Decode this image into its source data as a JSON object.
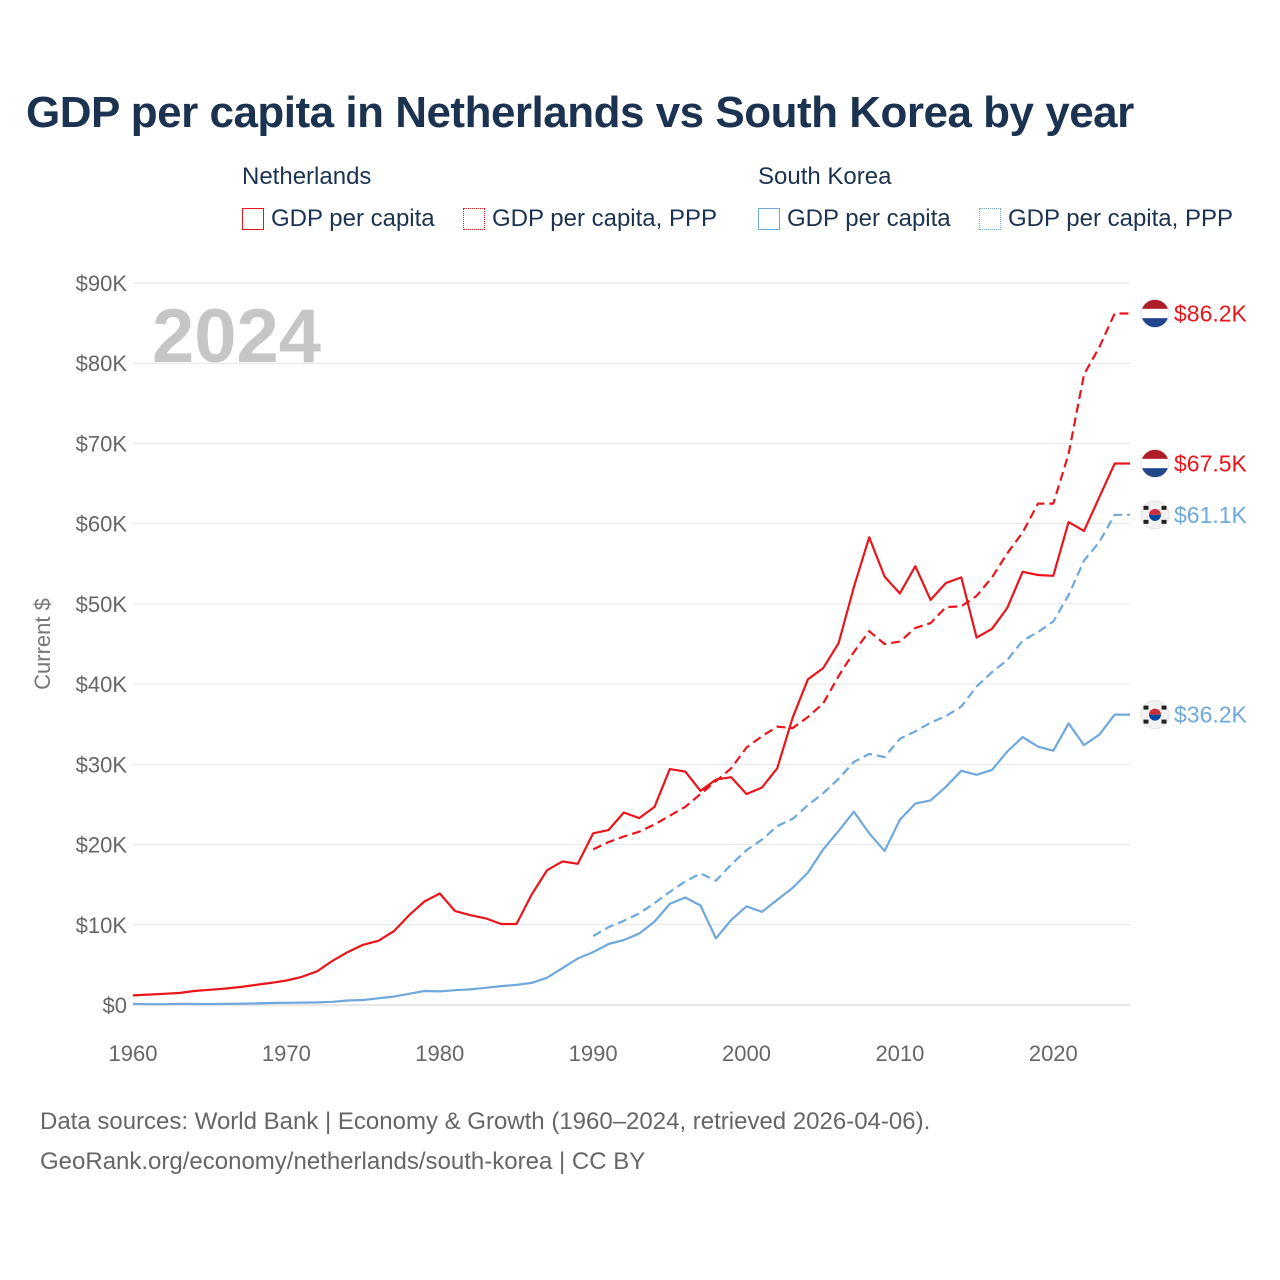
{
  "title": "GDP per capita in Netherlands vs South Korea by year",
  "legend": {
    "groups": [
      {
        "name": "Netherlands",
        "color": "#e8151b",
        "items": [
          {
            "label": "GDP per capita",
            "style": "solid"
          },
          {
            "label": "GDP per capita, PPP",
            "style": "dotted"
          }
        ]
      },
      {
        "name": "South Korea",
        "color": "#6fa8dc",
        "items": [
          {
            "label": "GDP per capita",
            "style": "solid"
          },
          {
            "label": "GDP per capita, PPP",
            "style": "dotted"
          }
        ]
      }
    ]
  },
  "sources": {
    "line1": "Data sources: World Bank | Economy & Growth (1960–2024, retrieved 2026-04-06).",
    "line2": "GeoRank.org/economy/netherlands/south-korea | CC BY"
  },
  "chart_data": {
    "type": "line",
    "title": "GDP per capita in Netherlands vs South Korea by year",
    "xlabel": "",
    "ylabel": "Current $",
    "xlim": [
      1960,
      2025
    ],
    "ylim": [
      0,
      90000
    ],
    "xticks": [
      1960,
      1970,
      1980,
      1990,
      2000,
      2010,
      2020
    ],
    "yticks": [
      0,
      10000,
      20000,
      30000,
      40000,
      50000,
      60000,
      70000,
      80000,
      90000
    ],
    "ytick_labels": [
      "$0",
      "$10K",
      "$20K",
      "$30K",
      "$40K",
      "$50K",
      "$60K",
      "$70K",
      "$80K",
      "$90K"
    ],
    "grid": true,
    "year_label": "2024",
    "series": [
      {
        "name": "Netherlands GDP per capita",
        "country": "Netherlands",
        "color": "#e8151b",
        "dash": "solid",
        "end_label": "$67.5K",
        "x": [
          1960,
          1961,
          1962,
          1963,
          1964,
          1965,
          1966,
          1967,
          1968,
          1969,
          1970,
          1971,
          1972,
          1973,
          1974,
          1975,
          1976,
          1977,
          1978,
          1979,
          1980,
          1981,
          1982,
          1983,
          1984,
          1985,
          1986,
          1987,
          1988,
          1989,
          1990,
          1991,
          1992,
          1993,
          1994,
          1995,
          1996,
          1997,
          1998,
          1999,
          2000,
          2001,
          2002,
          2003,
          2004,
          2005,
          2006,
          2007,
          2008,
          2009,
          2010,
          2011,
          2012,
          2013,
          2014,
          2015,
          2016,
          2017,
          2018,
          2019,
          2020,
          2021,
          2022,
          2023,
          2024,
          2025
        ],
        "y": [
          1200,
          1300,
          1400,
          1500,
          1750,
          1900,
          2050,
          2250,
          2500,
          2750,
          3050,
          3500,
          4200,
          5500,
          6600,
          7500,
          8000,
          9200,
          11200,
          12900,
          13900,
          11700,
          11200,
          10800,
          10100,
          10100,
          13800,
          16800,
          17900,
          17600,
          21400,
          21800,
          24000,
          23300,
          24700,
          29400,
          29100,
          26700,
          28100,
          28400,
          26300,
          27100,
          29500,
          35800,
          40600,
          42000,
          45100,
          52100,
          58300,
          53400,
          51300,
          54700,
          50500,
          52600,
          53300,
          45800,
          46900,
          49500,
          54000,
          53600,
          53500,
          60200,
          59100,
          63300,
          67500,
          67500
        ]
      },
      {
        "name": "Netherlands GDP per capita, PPP",
        "country": "Netherlands",
        "color": "#e8151b",
        "dash": "dashed",
        "end_label": "$86.2K",
        "x": [
          1990,
          1991,
          1992,
          1993,
          1994,
          1995,
          1996,
          1997,
          1998,
          1999,
          2000,
          2001,
          2002,
          2003,
          2004,
          2005,
          2006,
          2007,
          2008,
          2009,
          2010,
          2011,
          2012,
          2013,
          2014,
          2015,
          2016,
          2017,
          2018,
          2019,
          2020,
          2021,
          2022,
          2023,
          2024,
          2025
        ],
        "y": [
          19400,
          20300,
          21000,
          21600,
          22500,
          23600,
          24700,
          26300,
          27900,
          29500,
          32100,
          33500,
          34700,
          34500,
          35900,
          37600,
          41000,
          44000,
          46600,
          45000,
          45300,
          47000,
          47600,
          49600,
          49700,
          51000,
          53300,
          56300,
          58900,
          62500,
          62500,
          68700,
          78600,
          82000,
          86200,
          86200
        ]
      },
      {
        "name": "South Korea GDP per capita",
        "country": "South Korea",
        "color": "#6fa8dc",
        "dash": "solid",
        "end_label": "$36.2K",
        "x": [
          1960,
          1961,
          1962,
          1963,
          1964,
          1965,
          1966,
          1967,
          1968,
          1969,
          1970,
          1971,
          1972,
          1973,
          1974,
          1975,
          1976,
          1977,
          1978,
          1979,
          1980,
          1981,
          1982,
          1983,
          1984,
          1985,
          1986,
          1987,
          1988,
          1989,
          1990,
          1991,
          1992,
          1993,
          1994,
          1995,
          1996,
          1997,
          1998,
          1999,
          2000,
          2001,
          2002,
          2003,
          2004,
          2005,
          2006,
          2007,
          2008,
          2009,
          2010,
          2011,
          2012,
          2013,
          2014,
          2015,
          2016,
          2017,
          2018,
          2019,
          2020,
          2021,
          2022,
          2023,
          2024,
          2025
        ],
        "y": [
          160,
          95,
          105,
          145,
          125,
          110,
          135,
          160,
          200,
          245,
          280,
          300,
          330,
          400,
          560,
          620,
          830,
          1050,
          1400,
          1750,
          1700,
          1850,
          1950,
          2150,
          2350,
          2500,
          2750,
          3400,
          4600,
          5800,
          6600,
          7600,
          8100,
          8900,
          10400,
          12600,
          13400,
          12400,
          8300,
          10600,
          12300,
          11600,
          13100,
          14600,
          16500,
          19400,
          21700,
          24100,
          21400,
          19200,
          23100,
          25100,
          25500,
          27200,
          29200,
          28700,
          29300,
          31600,
          33400,
          32200,
          31700,
          35100,
          32400,
          33700,
          36200,
          36200
        ]
      },
      {
        "name": "South Korea GDP per capita, PPP",
        "country": "South Korea",
        "color": "#6fa8dc",
        "dash": "dashed",
        "end_label": "$61.1K",
        "x": [
          1990,
          1991,
          1992,
          1993,
          1994,
          1995,
          1996,
          1997,
          1998,
          1999,
          2000,
          2001,
          2002,
          2003,
          2004,
          2005,
          2006,
          2007,
          2008,
          2009,
          2010,
          2011,
          2012,
          2013,
          2014,
          2015,
          2016,
          2017,
          2018,
          2019,
          2020,
          2021,
          2022,
          2023,
          2024,
          2025
        ],
        "y": [
          8600,
          9700,
          10500,
          11400,
          12700,
          14100,
          15400,
          16400,
          15500,
          17500,
          19300,
          20600,
          22300,
          23200,
          24900,
          26400,
          28200,
          30300,
          31300,
          30900,
          33200,
          34100,
          35200,
          36000,
          37200,
          39700,
          41500,
          43000,
          45400,
          46500,
          47800,
          51100,
          55400,
          57700,
          61100,
          61100
        ]
      }
    ]
  }
}
